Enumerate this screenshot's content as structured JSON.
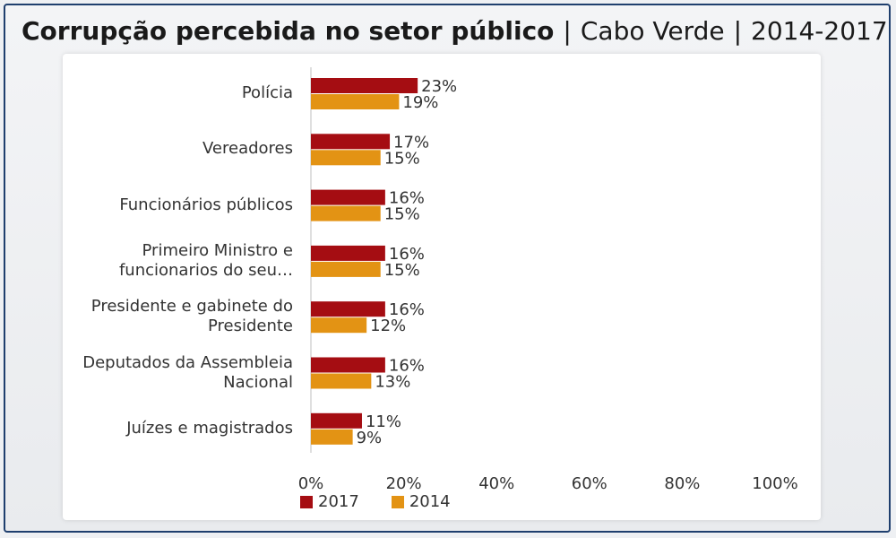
{
  "header": {
    "title_bold": "Corrupção percebida no setor público",
    "sep1": "|",
    "country": "Cabo Verde",
    "sep2": "|",
    "period": "2014-2017"
  },
  "chart_data": {
    "type": "bar",
    "orientation": "horizontal",
    "categories": [
      "Polícia",
      "Vereadores",
      "Funcionários públicos",
      "Primeiro Ministro e funcionarios do seu…",
      "Presidente e gabinete do Presidente",
      "Deputados da Assembleia Nacional",
      "Juízes e magistrados"
    ],
    "series": [
      {
        "name": "2017",
        "color": "#a50d12",
        "values": [
          23,
          17,
          16,
          16,
          16,
          16,
          11
        ]
      },
      {
        "name": "2014",
        "color": "#e39314",
        "values": [
          19,
          15,
          15,
          15,
          12,
          13,
          9
        ]
      }
    ],
    "value_labels_2017": [
      "23%",
      "17%",
      "16%",
      "16%",
      "16%",
      "16%",
      "11%"
    ],
    "value_labels_2014": [
      "19%",
      "15%",
      "15%",
      "15%",
      "12%",
      "13%",
      "9%"
    ],
    "xlim": [
      0,
      100
    ],
    "xticks": [
      "0%",
      "20%",
      "40%",
      "60%",
      "80%",
      "100%"
    ],
    "grid": false,
    "legend_position": "bottom-left"
  }
}
